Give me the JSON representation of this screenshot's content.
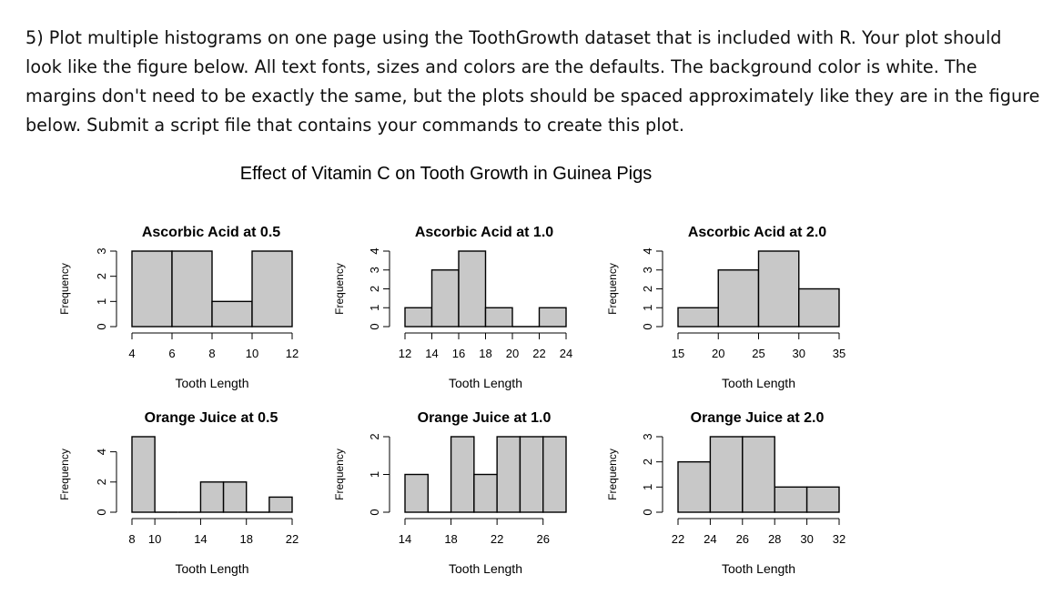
{
  "question_text": "5) Plot multiple histograms on one page using the ToothGrowth dataset that is included with R. Your plot should look like the figure below. All text fonts, sizes and colors are the defaults. The background color is white. The margins don't need to be exactly the same, but the plots should be spaced approximately like they are in the figure below. Submit a script file that contains your commands to create this plot.",
  "chart_data": {
    "type": "bar",
    "title": "Effect of Vitamin C on Tooth Growth in Guinea Pigs",
    "bar_fill": "#c8c8c8",
    "panels": [
      {
        "title": "Ascorbic Acid at 0.5",
        "xlabel": "Tooth Length",
        "ylabel": "Frequency",
        "breaks": [
          4,
          6,
          8,
          10,
          12
        ],
        "counts": [
          3,
          3,
          1,
          3
        ],
        "xticks": [
          4,
          6,
          8,
          10,
          12
        ],
        "yticks": [
          0,
          1,
          2,
          3
        ]
      },
      {
        "title": "Ascorbic Acid at 1.0",
        "xlabel": "Tooth Length",
        "ylabel": "Frequency",
        "breaks": [
          12,
          14,
          16,
          18,
          20,
          22,
          24
        ],
        "counts": [
          1,
          3,
          4,
          1,
          0,
          1
        ],
        "xticks": [
          12,
          14,
          16,
          18,
          20,
          22,
          24
        ],
        "yticks": [
          0,
          1,
          2,
          3,
          4
        ]
      },
      {
        "title": "Ascorbic Acid at 2.0",
        "xlabel": "Tooth Length",
        "ylabel": "Frequency",
        "breaks": [
          15,
          20,
          25,
          30,
          35
        ],
        "counts": [
          1,
          3,
          4,
          2
        ],
        "xticks": [
          15,
          20,
          25,
          30,
          35
        ],
        "yticks": [
          0,
          1,
          2,
          3,
          4
        ]
      },
      {
        "title": "Orange Juice at 0.5",
        "xlabel": "Tooth Length",
        "ylabel": "Frequency",
        "breaks": [
          8,
          10,
          12,
          14,
          16,
          18,
          20,
          22
        ],
        "counts": [
          5,
          0,
          0,
          2,
          2,
          0,
          1
        ],
        "xticks": [
          8,
          10,
          14,
          18,
          22
        ],
        "yticks": [
          0,
          2,
          4
        ]
      },
      {
        "title": "Orange Juice at 1.0",
        "xlabel": "Tooth Length",
        "ylabel": "Frequency",
        "breaks": [
          14,
          16,
          18,
          20,
          22,
          24,
          26,
          28
        ],
        "counts": [
          1,
          0,
          2,
          1,
          2,
          2,
          2
        ],
        "xticks": [
          14,
          18,
          22,
          26
        ],
        "yticks": [
          0,
          1,
          2
        ]
      },
      {
        "title": "Orange Juice at 2.0",
        "xlabel": "Tooth Length",
        "ylabel": "Frequency",
        "breaks": [
          22,
          24,
          26,
          28,
          30,
          32
        ],
        "counts": [
          2,
          3,
          3,
          1,
          1
        ],
        "xticks": [
          22,
          24,
          26,
          28,
          30,
          32
        ],
        "yticks": [
          0,
          1,
          2,
          3
        ]
      }
    ]
  }
}
